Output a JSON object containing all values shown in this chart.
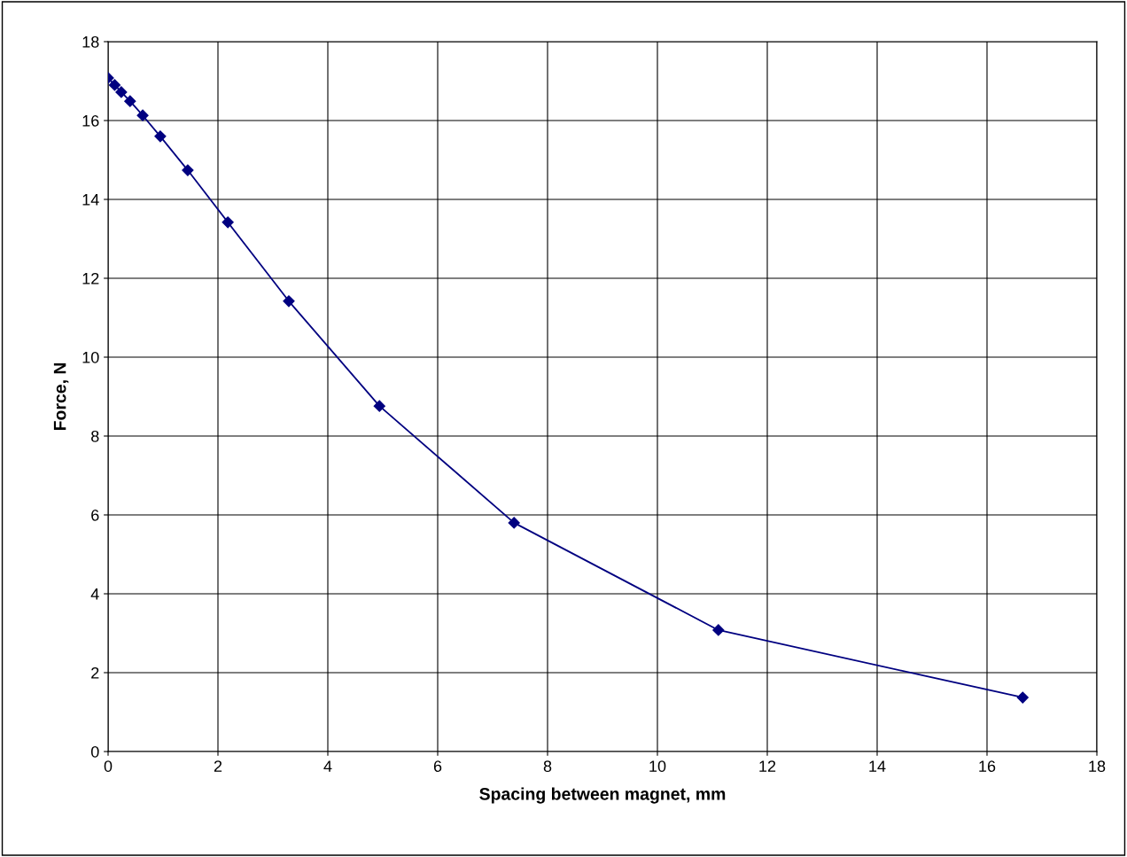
{
  "chart_data": {
    "type": "line",
    "xlabel": "Spacing between magnet, mm",
    "ylabel": "Force, N",
    "series": [
      {
        "color": "#000080",
        "x": [
          0,
          0.12,
          0.24,
          0.4,
          0.63,
          0.95,
          1.45,
          2.18,
          3.29,
          4.94,
          7.39,
          11.11,
          16.65
        ],
        "values": [
          17.08,
          16.9,
          16.72,
          16.49,
          16.13,
          15.6,
          14.74,
          13.42,
          11.42,
          8.76,
          5.8,
          3.08,
          1.37
        ]
      }
    ],
    "marker": "diamond",
    "line_style": "solid",
    "grid": true,
    "legend": false,
    "xlim": [
      0,
      18
    ],
    "xticks": [
      0,
      2,
      4,
      6,
      8,
      10,
      12,
      14,
      16,
      18
    ],
    "ylim": [
      0,
      18
    ],
    "yticks": [
      0,
      2,
      4,
      6,
      8,
      10,
      12,
      14,
      16,
      18
    ]
  }
}
